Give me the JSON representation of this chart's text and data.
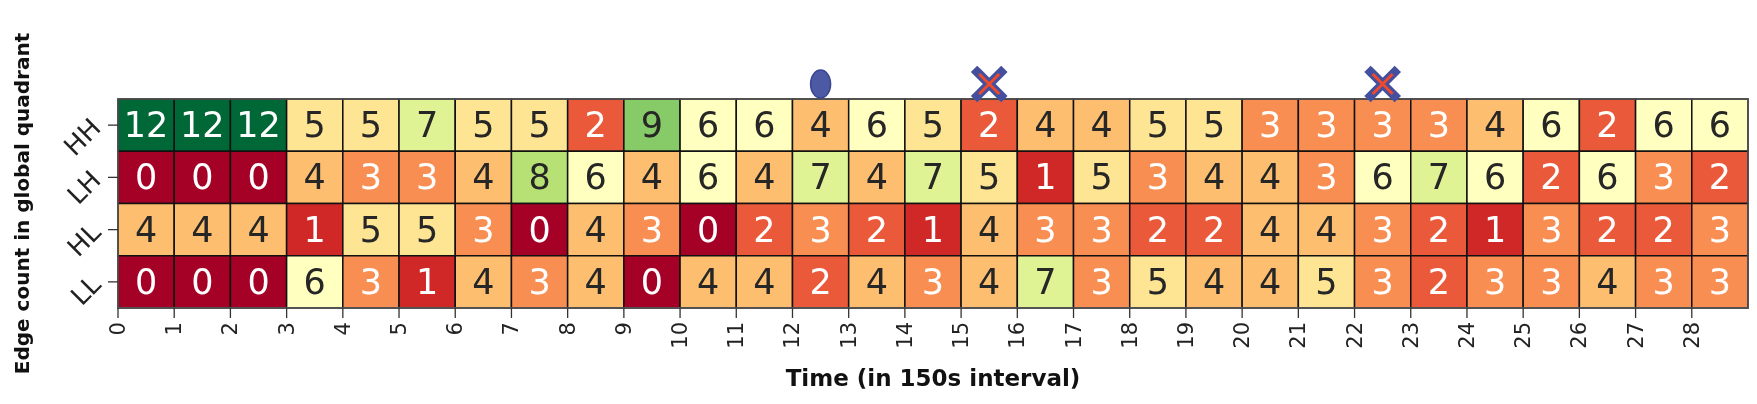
{
  "chart_data": {
    "type": "heatmap",
    "xlabel": "Time (in 150s interval)",
    "ylabel": "Edge count in global quadrant",
    "x": [
      0.5,
      1.5,
      2.5,
      3.5,
      4.5,
      5.5,
      6.5,
      7.5,
      8.5,
      9.5,
      10.5,
      11.5,
      12.5,
      13.5,
      14.5,
      15.5,
      16.5,
      17.5,
      18.5,
      19.5,
      20.5,
      21.5,
      22.5,
      23.5,
      24.5,
      25.5,
      26.5,
      27.5,
      28.5
    ],
    "xlim": [
      0,
      29
    ],
    "xticks": [
      0,
      1,
      2,
      3,
      4,
      5,
      6,
      7,
      8,
      9,
      10,
      11,
      12,
      13,
      14,
      15,
      16,
      17,
      18,
      19,
      20,
      21,
      22,
      23,
      24,
      25,
      26,
      27,
      28
    ],
    "y_categories": [
      "HH",
      "LH",
      "HL",
      "LL"
    ],
    "cells": [
      [
        12,
        12,
        12,
        5,
        5,
        7,
        5,
        5,
        2,
        9,
        6,
        6,
        4,
        6,
        5,
        2,
        4,
        4,
        5,
        5,
        3,
        3,
        3,
        3,
        4,
        6,
        2,
        6,
        6
      ],
      [
        0,
        0,
        0,
        4,
        3,
        3,
        4,
        8,
        6,
        4,
        6,
        4,
        7,
        4,
        7,
        5,
        1,
        5,
        3,
        4,
        4,
        3,
        6,
        7,
        6,
        2,
        6,
        3,
        2
      ],
      [
        4,
        4,
        4,
        1,
        5,
        5,
        3,
        0,
        4,
        3,
        0,
        2,
        3,
        2,
        1,
        4,
        3,
        3,
        2,
        2,
        4,
        4,
        3,
        2,
        1,
        3,
        2,
        2,
        3
      ],
      [
        0,
        0,
        0,
        6,
        3,
        1,
        4,
        3,
        4,
        0,
        4,
        4,
        2,
        4,
        3,
        4,
        7,
        3,
        5,
        4,
        4,
        5,
        3,
        2,
        3,
        3,
        4,
        3,
        3
      ]
    ],
    "data_labels": true
  }
}
